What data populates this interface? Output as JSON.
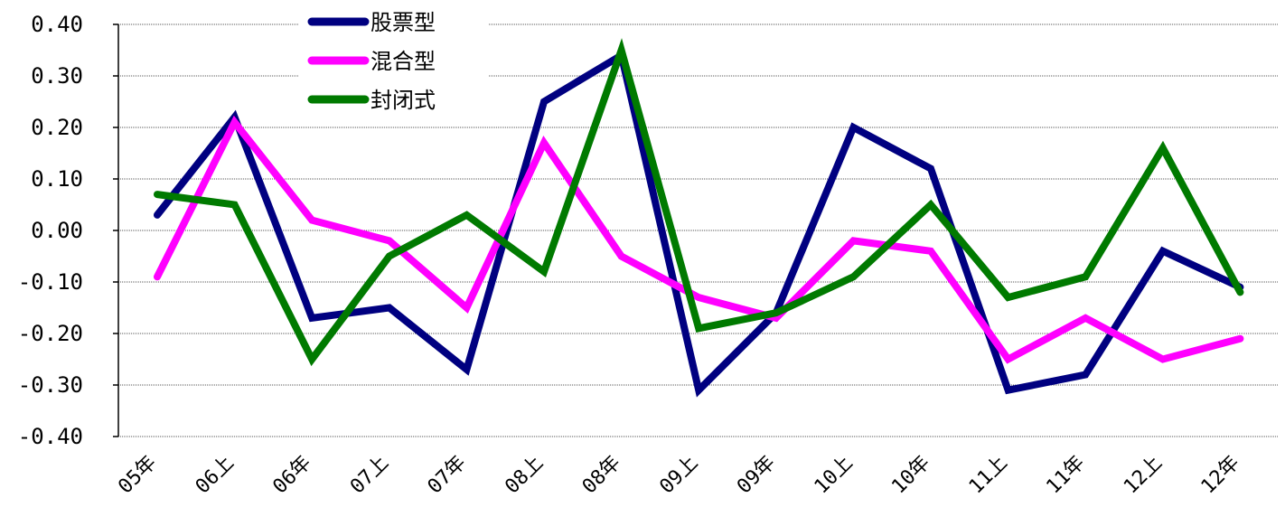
{
  "chart_data": {
    "type": "line",
    "categories": [
      "05年",
      "06上",
      "06年",
      "07上",
      "07年",
      "08上",
      "08年",
      "09上",
      "09年",
      "10上",
      "10年",
      "11上",
      "11年",
      "12上",
      "12年"
    ],
    "series": [
      {
        "name": "股票型",
        "color": "#000080",
        "values": [
          0.03,
          0.22,
          -0.17,
          -0.15,
          -0.27,
          0.25,
          0.34,
          -0.31,
          -0.16,
          0.2,
          0.12,
          -0.31,
          -0.28,
          -0.04,
          -0.11
        ]
      },
      {
        "name": "混合型",
        "color": "#ff00ff",
        "values": [
          -0.09,
          0.21,
          0.02,
          -0.02,
          -0.15,
          0.17,
          -0.05,
          -0.13,
          -0.17,
          -0.02,
          -0.04,
          -0.25,
          -0.17,
          -0.25,
          -0.21
        ]
      },
      {
        "name": "封闭式",
        "color": "#007a00",
        "values": [
          0.07,
          0.05,
          -0.25,
          -0.05,
          0.03,
          -0.08,
          0.35,
          -0.19,
          -0.16,
          -0.09,
          0.05,
          -0.13,
          -0.09,
          0.16,
          -0.12
        ]
      }
    ],
    "yticks": [
      "0.40",
      "0.30",
      "0.20",
      "0.10",
      "0.00",
      "-0.10",
      "-0.20",
      "-0.30",
      "-0.40"
    ],
    "ylim": [
      -0.4,
      0.4
    ],
    "grid": true,
    "legend": "top-left"
  }
}
